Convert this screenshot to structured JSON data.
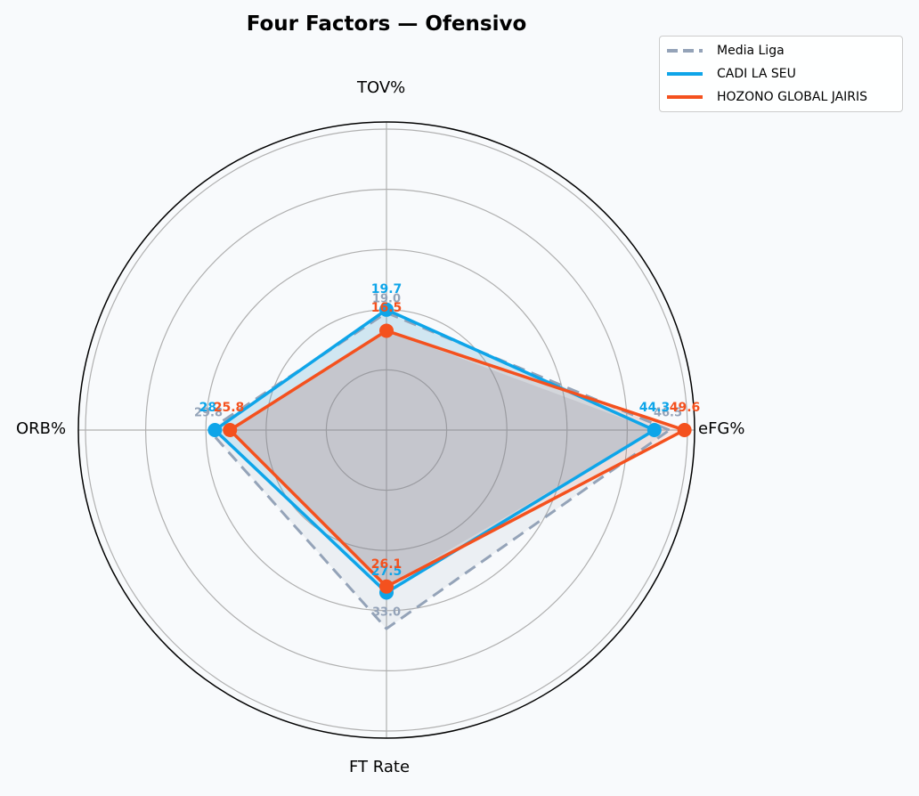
{
  "title": "Four Factors — Ofensivo",
  "legend": [
    {
      "label": "Media Liga",
      "color": "#94a3b8",
      "style": "dashed"
    },
    {
      "label": "CADI LA SEU",
      "color": "#0ea5e9",
      "style": "solid"
    },
    {
      "label": "HOZONO GLOBAL JAIRIS",
      "color": "#f4511e",
      "style": "solid"
    }
  ],
  "axes": [
    "eFG%",
    "TOV%",
    "ORB%",
    "FT Rate"
  ],
  "value_labels": {
    "media": [
      "46.5",
      "19.0",
      "29.8",
      "33.0"
    ],
    "cadi": [
      "44.3",
      "19.7",
      "28.",
      "27.5"
    ],
    "hozono": [
      "49.6",
      "16.5",
      "25.8",
      "26.1"
    ]
  },
  "chart_data": {
    "type": "radar",
    "title": "Four Factors — Ofensivo",
    "categories": [
      "eFG%",
      "TOV%",
      "ORB%",
      "FT Rate"
    ],
    "series": [
      {
        "name": "Media Liga",
        "values": [
          46.5,
          19.0,
          29.8,
          33.0
        ],
        "color": "#94a3b8",
        "linestyle": "dashed"
      },
      {
        "name": "CADI LA SEU",
        "values": [
          44.3,
          19.7,
          28.0,
          27.5
        ],
        "color": "#0ea5e9",
        "linestyle": "solid"
      },
      {
        "name": "HOZONO GLOBAL JAIRIS",
        "values": [
          49.6,
          16.5,
          25.8,
          26.1
        ],
        "color": "#f4511e",
        "linestyle": "solid"
      }
    ],
    "normalized_radius": {
      "Media Liga": [
        0.94,
        0.39,
        0.59,
        0.66
      ],
      "CADI LA SEU": [
        0.89,
        0.4,
        0.57,
        0.54
      ],
      "HOZONO GLOBAL JAIRIS": [
        0.99,
        0.33,
        0.52,
        0.52
      ]
    },
    "grid": true,
    "grid_rings": 5,
    "legend_position": "upper right"
  }
}
